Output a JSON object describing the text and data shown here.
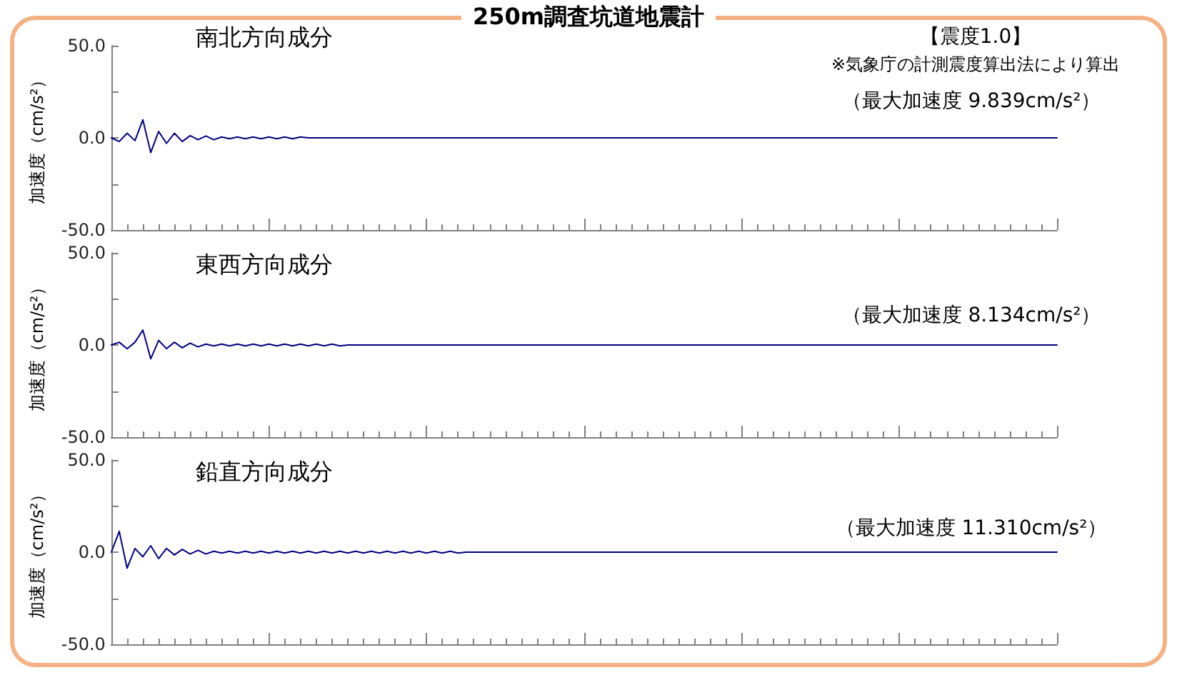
{
  "chart_data": [
    {
      "type": "line",
      "title": "250m調査坑道地震計",
      "subtitle": "南北方向成分",
      "ylabel": "加速度（cm/s²）",
      "color": "#000080",
      "categories": [
        null,
        null,
        null,
        null,
        null,
        null,
        null,
        null,
        null,
        null,
        null,
        null,
        null,
        null,
        null,
        null,
        null,
        null,
        null,
        null,
        null,
        null,
        null,
        null,
        null,
        null,
        null,
        null,
        null,
        null,
        null,
        null,
        null,
        null,
        null,
        null,
        null,
        null,
        null,
        null,
        null,
        null,
        null,
        null,
        null,
        null,
        null,
        null,
        null,
        null,
        null,
        null,
        null,
        null,
        null,
        null,
        null,
        null,
        null,
        null,
        null,
        null,
        null,
        null,
        null,
        null,
        null,
        null,
        null,
        null,
        null,
        null,
        null,
        null,
        null,
        null,
        null,
        null,
        null,
        null,
        null,
        null,
        null,
        null,
        null,
        null,
        null,
        null,
        null,
        null,
        null,
        null,
        null,
        null,
        null,
        null,
        null,
        null,
        null,
        null,
        null,
        null,
        null,
        null,
        null,
        null,
        null,
        null,
        null,
        null,
        null,
        null,
        null,
        null,
        null,
        null,
        null,
        null,
        null,
        null,
        null
      ],
      "values": [
        0,
        -2,
        2.5,
        -1.5,
        9.8,
        -8,
        3.5,
        -3,
        2.5,
        -2,
        1.2,
        -1,
        1,
        -1,
        0.5,
        -0.5,
        0.5,
        -0.5,
        0.5,
        -0.5,
        0.5,
        -0.5,
        0.5,
        -0.5,
        0.5,
        0,
        0,
        0,
        0,
        0,
        0,
        0,
        0,
        0,
        0,
        0,
        0,
        0,
        0,
        0,
        0,
        0,
        0,
        0,
        0,
        0,
        0,
        0,
        0,
        0,
        0,
        0,
        0,
        0,
        0,
        0,
        0,
        0,
        0,
        0,
        0,
        0,
        0,
        0,
        0,
        0,
        0,
        0,
        0,
        0,
        0,
        0,
        0,
        0,
        0,
        0,
        0,
        0,
        0,
        0,
        0,
        0,
        0,
        0,
        0,
        0,
        0,
        0,
        0,
        0,
        0,
        0,
        0,
        0,
        0,
        0,
        0,
        0,
        0,
        0,
        0,
        0,
        0,
        0,
        0,
        0,
        0,
        0,
        0,
        0,
        0,
        0,
        0,
        0,
        0,
        0,
        0,
        0,
        0,
        0,
        0
      ],
      "ylim": [
        -50,
        50
      ],
      "yticks": [
        {
          "value": -50,
          "label": "-50.0"
        },
        {
          "value": -25,
          "label": null
        },
        {
          "value": 0,
          "label": "0.0"
        },
        {
          "value": 25,
          "label": null
        },
        {
          "value": 50,
          "label": "50.0"
        }
      ],
      "tick_labels": "y",
      "annotations": [
        "【震度1.0】",
        "※気象庁の計測震度算出法により算出",
        "（最大加速度 9.839cm/s²）"
      ]
    },
    {
      "type": "line",
      "subtitle": "東西方向成分",
      "ylabel": "加速度（cm/s²）",
      "color": "#000080",
      "categories": [
        null,
        null,
        null,
        null,
        null,
        null,
        null,
        null,
        null,
        null,
        null,
        null,
        null,
        null,
        null,
        null,
        null,
        null,
        null,
        null,
        null,
        null,
        null,
        null,
        null,
        null,
        null,
        null,
        null,
        null,
        null,
        null,
        null,
        null,
        null,
        null,
        null,
        null,
        null,
        null,
        null,
        null,
        null,
        null,
        null,
        null,
        null,
        null,
        null,
        null,
        null,
        null,
        null,
        null,
        null,
        null,
        null,
        null,
        null,
        null,
        null,
        null,
        null,
        null,
        null,
        null,
        null,
        null,
        null,
        null,
        null,
        null,
        null,
        null,
        null,
        null,
        null,
        null,
        null,
        null,
        null,
        null,
        null,
        null,
        null,
        null,
        null,
        null,
        null,
        null,
        null,
        null,
        null,
        null,
        null,
        null,
        null,
        null,
        null,
        null,
        null,
        null,
        null,
        null,
        null,
        null,
        null,
        null,
        null,
        null,
        null,
        null,
        null,
        null,
        null,
        null,
        null,
        null,
        null,
        null,
        null
      ],
      "values": [
        0,
        1.5,
        -2,
        1.5,
        8.1,
        -7.5,
        2.5,
        -2,
        1.5,
        -1.5,
        1,
        -1,
        0.5,
        -0.5,
        0.5,
        -0.5,
        0.5,
        -0.5,
        0.5,
        -0.5,
        0.5,
        -0.5,
        0.5,
        -0.5,
        0.5,
        -0.5,
        0.5,
        -0.5,
        0.5,
        -0.5,
        0,
        0,
        0,
        0,
        0,
        0,
        0,
        0,
        0,
        0,
        0,
        0,
        0,
        0,
        0,
        0,
        0,
        0,
        0,
        0,
        0,
        0,
        0,
        0,
        0,
        0,
        0,
        0,
        0,
        0,
        0,
        0,
        0,
        0,
        0,
        0,
        0,
        0,
        0,
        0,
        0,
        0,
        0,
        0,
        0,
        0,
        0,
        0,
        0,
        0,
        0,
        0,
        0,
        0,
        0,
        0,
        0,
        0,
        0,
        0,
        0,
        0,
        0,
        0,
        0,
        0,
        0,
        0,
        0,
        0,
        0,
        0,
        0,
        0,
        0,
        0,
        0,
        0,
        0,
        0,
        0,
        0,
        0,
        0,
        0,
        0,
        0,
        0,
        0,
        0,
        0
      ],
      "ylim": [
        -50,
        50
      ],
      "yticks": [
        {
          "value": -50,
          "label": "-50.0"
        },
        {
          "value": -25,
          "label": null
        },
        {
          "value": 0,
          "label": "0.0"
        },
        {
          "value": 25,
          "label": null
        },
        {
          "value": 50,
          "label": "50.0"
        }
      ],
      "tick_labels": "y",
      "annotations": [
        "（最大加速度 8.134cm/s²）"
      ]
    },
    {
      "type": "line",
      "subtitle": "鉛直方向成分",
      "ylabel": "加速度（cm/s²）",
      "color": "#000080",
      "categories": [
        null,
        null,
        null,
        null,
        null,
        null,
        null,
        null,
        null,
        null,
        null,
        null,
        null,
        null,
        null,
        null,
        null,
        null,
        null,
        null,
        null,
        null,
        null,
        null,
        null,
        null,
        null,
        null,
        null,
        null,
        null,
        null,
        null,
        null,
        null,
        null,
        null,
        null,
        null,
        null,
        null,
        null,
        null,
        null,
        null,
        null,
        null,
        null,
        null,
        null,
        null,
        null,
        null,
        null,
        null,
        null,
        null,
        null,
        null,
        null,
        null,
        null,
        null,
        null,
        null,
        null,
        null,
        null,
        null,
        null,
        null,
        null,
        null,
        null,
        null,
        null,
        null,
        null,
        null,
        null,
        null,
        null,
        null,
        null,
        null,
        null,
        null,
        null,
        null,
        null,
        null,
        null,
        null,
        null,
        null,
        null,
        null,
        null,
        null,
        null,
        null,
        null,
        null,
        null,
        null,
        null,
        null,
        null,
        null,
        null,
        null,
        null,
        null,
        null,
        null,
        null,
        null,
        null,
        null,
        null,
        null
      ],
      "values": [
        0,
        11.3,
        -8.7,
        2,
        -2.5,
        3.5,
        -3.5,
        2,
        -1.5,
        1.5,
        -1,
        1,
        -1,
        0.5,
        -0.5,
        0.5,
        -0.5,
        0.5,
        -0.5,
        0.5,
        -0.5,
        0.5,
        -0.5,
        0.5,
        -0.5,
        0.5,
        -0.5,
        0.5,
        -0.5,
        0.5,
        -0.5,
        0.5,
        -0.5,
        0.5,
        -0.5,
        0.5,
        -0.5,
        0.5,
        -0.5,
        0.5,
        -0.5,
        0.5,
        -0.5,
        0.5,
        -0.5,
        0,
        0,
        0,
        0,
        0,
        0,
        0,
        0,
        0,
        0,
        0,
        0,
        0,
        0,
        0,
        0,
        0,
        0,
        0,
        0,
        0,
        0,
        0,
        0,
        0,
        0,
        0,
        0,
        0,
        0,
        0,
        0,
        0,
        0,
        0,
        0,
        0,
        0,
        0,
        0,
        0,
        0,
        0,
        0,
        0,
        0,
        0,
        0,
        0,
        0,
        0,
        0,
        0,
        0,
        0,
        0,
        0,
        0,
        0,
        0,
        0,
        0,
        0,
        0,
        0,
        0,
        0,
        0,
        0,
        0,
        0,
        0,
        0,
        0,
        0,
        0
      ],
      "ylim": [
        -50,
        50
      ],
      "yticks": [
        {
          "value": -50,
          "label": "-50.0"
        },
        {
          "value": -25,
          "label": null
        },
        {
          "value": 0,
          "label": "0.0"
        },
        {
          "value": 25,
          "label": null
        },
        {
          "value": 50,
          "label": "50.0"
        }
      ],
      "tick_labels": "y",
      "annotations": [
        "（最大加速度 11.310cm/s²）"
      ]
    }
  ]
}
